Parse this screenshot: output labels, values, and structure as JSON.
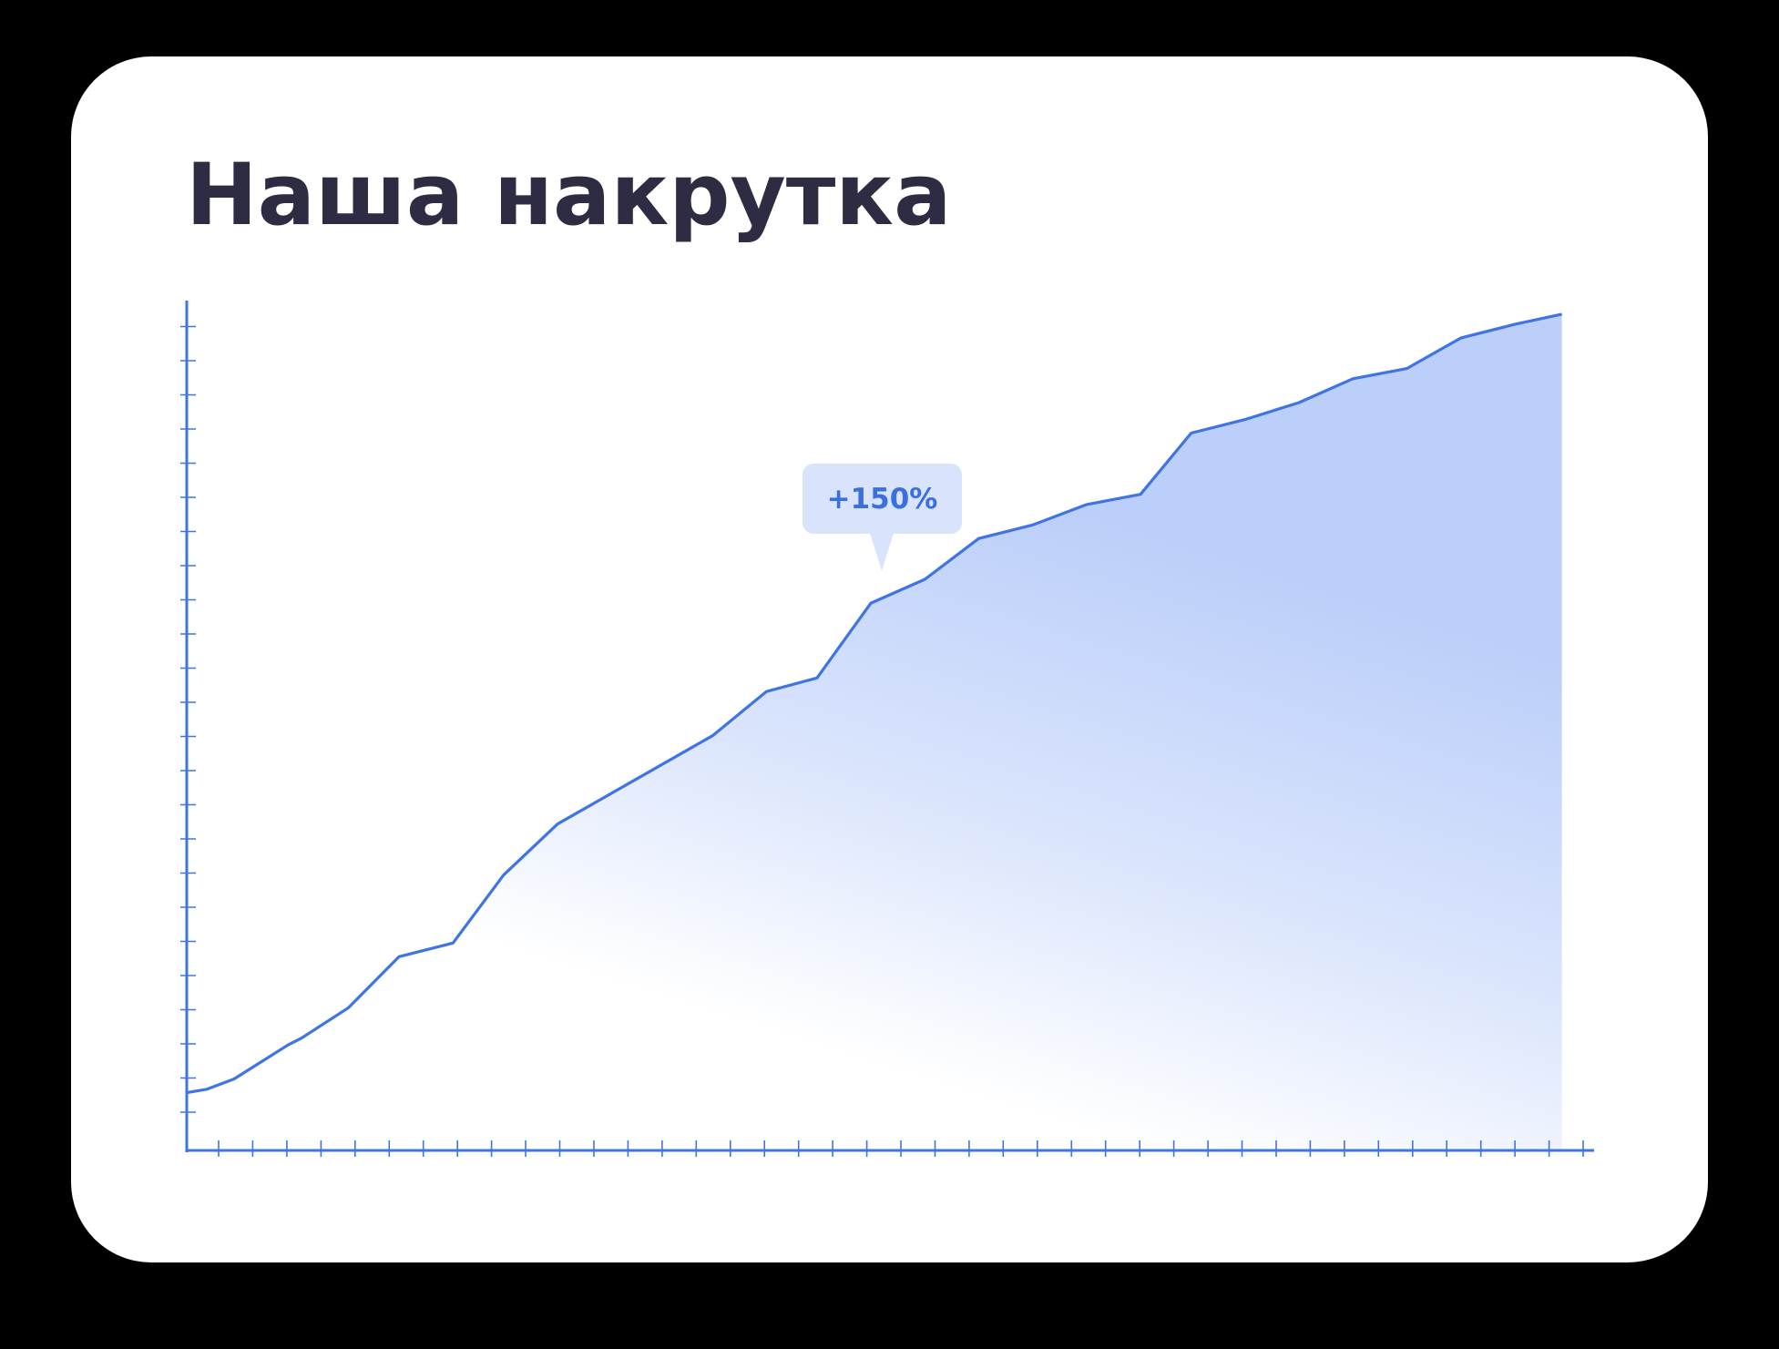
{
  "title": "Наша накрутка",
  "annotation": "+150%",
  "colors": {
    "line": "#3f74e4",
    "fill_top": "#bccffa",
    "tooltip_bg": "#d9e4fc",
    "tooltip_text": "#3a6fe0",
    "title": "#2e2c42",
    "card": "#ffffff",
    "background": "#000000"
  },
  "chart_data": {
    "type": "area",
    "title": "Наша накрутка",
    "xlabel": "",
    "ylabel": "",
    "grid": false,
    "x_ticks": 41,
    "y_ticks": 24,
    "annotation": {
      "label": "+150%",
      "x": 20.3
    },
    "points": [
      [
        0,
        1.7
      ],
      [
        0.6,
        1.8
      ],
      [
        1.4,
        2.1
      ],
      [
        2.2,
        2.6
      ],
      [
        3.0,
        3.1
      ],
      [
        3.4,
        3.3
      ],
      [
        4.8,
        4.2
      ],
      [
        5.4,
        4.8
      ],
      [
        6.3,
        5.7
      ],
      [
        7.9,
        6.1
      ],
      [
        9.4,
        8.1
      ],
      [
        11.0,
        9.6
      ],
      [
        15.6,
        12.2
      ],
      [
        17.2,
        13.5
      ],
      [
        18.7,
        13.9
      ],
      [
        20.3,
        16.1
      ],
      [
        21.9,
        16.8
      ],
      [
        23.5,
        18.0
      ],
      [
        25.1,
        18.4
      ],
      [
        26.7,
        19.0
      ],
      [
        28.3,
        19.3
      ],
      [
        29.8,
        21.1
      ],
      [
        31.4,
        21.5
      ],
      [
        33.0,
        22.0
      ],
      [
        34.6,
        22.7
      ],
      [
        36.2,
        23.0
      ],
      [
        37.8,
        23.9
      ],
      [
        39.4,
        24.3
      ],
      [
        40.8,
        24.6
      ]
    ],
    "xlim": [
      0,
      41
    ],
    "ylim": [
      0,
      25
    ]
  }
}
